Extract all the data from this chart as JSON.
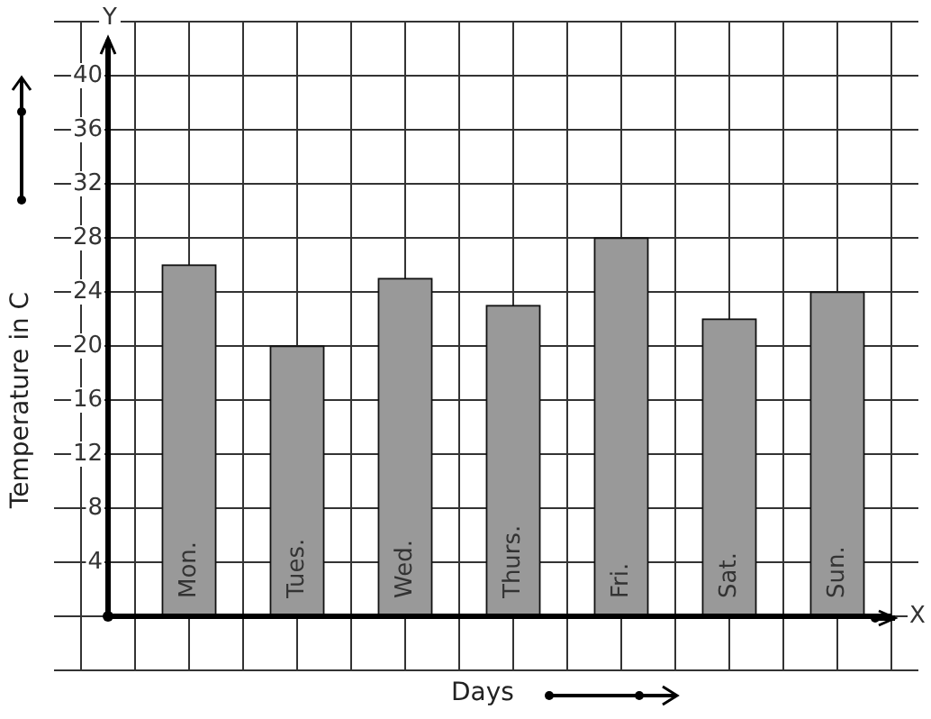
{
  "chart_data": {
    "type": "bar",
    "xlabel": "Days",
    "ylabel": "Temperature in C",
    "annotations": [
      "Y",
      "X"
    ],
    "categories": [
      "Mon.",
      "Tues.",
      "Wed.",
      "Thurs.",
      "Fri.",
      "Sat.",
      "Sun."
    ],
    "values": [
      26,
      20,
      25,
      23,
      28,
      22,
      24
    ],
    "color": "#999999",
    "ylim": [
      -4,
      44
    ],
    "yticks": [
      {
        "value": -4,
        "label": null
      },
      {
        "value": 0,
        "label": null
      },
      4,
      8,
      12,
      16,
      20,
      24,
      28,
      32,
      36,
      40,
      {
        "value": 44,
        "label": null
      }
    ],
    "grid": true,
    "legend": false
  }
}
